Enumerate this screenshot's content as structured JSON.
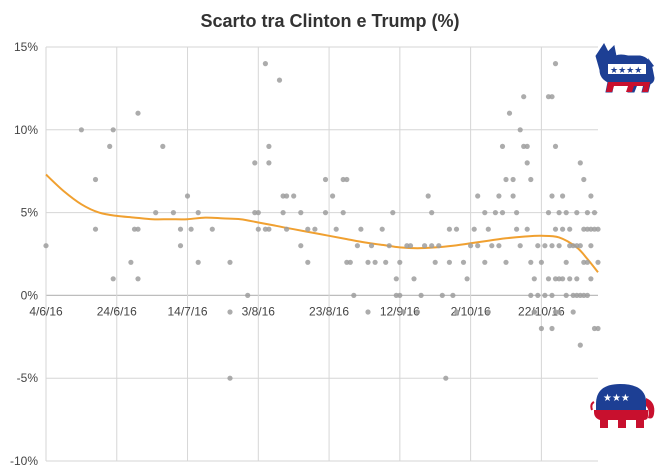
{
  "chart_data": {
    "type": "scatter",
    "title": "Scarto tra Clinton e Trump (%)",
    "xlabel": "",
    "ylabel": "",
    "x_ticks": [
      "4/6/16",
      "24/6/16",
      "14/7/16",
      "3/8/16",
      "23/8/16",
      "12/9/16",
      "2/10/16",
      "22/10/16"
    ],
    "y_ticks": [
      "15%",
      "10%",
      "5%",
      "0%",
      "-5%",
      "-10%"
    ],
    "ylim": [
      -10,
      15
    ],
    "xlim": [
      "2016-06-04",
      "2016-11-07"
    ],
    "grid": true,
    "legend": "none",
    "series": [
      {
        "kind": "points",
        "color": "#9e9e9e",
        "points": [
          [
            "2016-06-04",
            3
          ],
          [
            "2016-06-14",
            10
          ],
          [
            "2016-06-18",
            7
          ],
          [
            "2016-06-18",
            4
          ],
          [
            "2016-06-22",
            9
          ],
          [
            "2016-06-23",
            10
          ],
          [
            "2016-06-23",
            1
          ],
          [
            "2016-06-28",
            2
          ],
          [
            "2016-06-29",
            4
          ],
          [
            "2016-06-30",
            11
          ],
          [
            "2016-06-30",
            4
          ],
          [
            "2016-06-30",
            1
          ],
          [
            "2016-07-05",
            5
          ],
          [
            "2016-07-07",
            9
          ],
          [
            "2016-07-10",
            5
          ],
          [
            "2016-07-12",
            3
          ],
          [
            "2016-07-12",
            4
          ],
          [
            "2016-07-14",
            6
          ],
          [
            "2016-07-15",
            4
          ],
          [
            "2016-07-17",
            2
          ],
          [
            "2016-07-17",
            5
          ],
          [
            "2016-07-21",
            4
          ],
          [
            "2016-07-26",
            2
          ],
          [
            "2016-07-26",
            -1
          ],
          [
            "2016-07-26",
            -5
          ],
          [
            "2016-07-31",
            0
          ],
          [
            "2016-08-02",
            5
          ],
          [
            "2016-08-02",
            8
          ],
          [
            "2016-08-03",
            4
          ],
          [
            "2016-08-03",
            5
          ],
          [
            "2016-08-05",
            14
          ],
          [
            "2016-08-06",
            8
          ],
          [
            "2016-08-06",
            9
          ],
          [
            "2016-08-05",
            4
          ],
          [
            "2016-08-06",
            4
          ],
          [
            "2016-08-09",
            13
          ],
          [
            "2016-08-10",
            6
          ],
          [
            "2016-08-10",
            5
          ],
          [
            "2016-08-11",
            6
          ],
          [
            "2016-08-11",
            4
          ],
          [
            "2016-08-13",
            6
          ],
          [
            "2016-08-15",
            5
          ],
          [
            "2016-08-15",
            3
          ],
          [
            "2016-08-17",
            2
          ],
          [
            "2016-08-17",
            4
          ],
          [
            "2016-08-19",
            4
          ],
          [
            "2016-08-22",
            7
          ],
          [
            "2016-08-22",
            5
          ],
          [
            "2016-08-24",
            6
          ],
          [
            "2016-08-25",
            4
          ],
          [
            "2016-08-27",
            7
          ],
          [
            "2016-08-27",
            5
          ],
          [
            "2016-08-28",
            2
          ],
          [
            "2016-08-28",
            7
          ],
          [
            "2016-08-29",
            2
          ],
          [
            "2016-08-30",
            0
          ],
          [
            "2016-08-31",
            3
          ],
          [
            "2016-09-01",
            4
          ],
          [
            "2016-09-03",
            -1
          ],
          [
            "2016-09-03",
            2
          ],
          [
            "2016-09-04",
            3
          ],
          [
            "2016-09-05",
            2
          ],
          [
            "2016-09-07",
            4
          ],
          [
            "2016-09-08",
            2
          ],
          [
            "2016-09-09",
            3
          ],
          [
            "2016-09-10",
            5
          ],
          [
            "2016-09-11",
            1
          ],
          [
            "2016-09-11",
            0
          ],
          [
            "2016-09-12",
            2
          ],
          [
            "2016-09-12",
            0
          ],
          [
            "2016-09-13",
            -1
          ],
          [
            "2016-09-14",
            3
          ],
          [
            "2016-09-15",
            3
          ],
          [
            "2016-09-16",
            1
          ],
          [
            "2016-09-17",
            -1
          ],
          [
            "2016-09-18",
            0
          ],
          [
            "2016-09-19",
            3
          ],
          [
            "2016-09-20",
            6
          ],
          [
            "2016-09-21",
            5
          ],
          [
            "2016-09-21",
            3
          ],
          [
            "2016-09-22",
            2
          ],
          [
            "2016-09-23",
            3
          ],
          [
            "2016-09-24",
            0
          ],
          [
            "2016-09-25",
            -5
          ],
          [
            "2016-09-26",
            4
          ],
          [
            "2016-09-26",
            2
          ],
          [
            "2016-09-27",
            0
          ],
          [
            "2016-09-28",
            4
          ],
          [
            "2016-09-28",
            -1
          ],
          [
            "2016-09-30",
            2
          ],
          [
            "2016-10-01",
            1
          ],
          [
            "2016-10-02",
            3
          ],
          [
            "2016-10-03",
            4
          ],
          [
            "2016-10-04",
            6
          ],
          [
            "2016-10-04",
            3
          ],
          [
            "2016-10-06",
            5
          ],
          [
            "2016-10-06",
            2
          ],
          [
            "2016-10-07",
            4
          ],
          [
            "2016-10-07",
            -1
          ],
          [
            "2016-10-08",
            3
          ],
          [
            "2016-10-09",
            5
          ],
          [
            "2016-10-10",
            6
          ],
          [
            "2016-10-10",
            3
          ],
          [
            "2016-10-11",
            9
          ],
          [
            "2016-10-11",
            5
          ],
          [
            "2016-10-12",
            7
          ],
          [
            "2016-10-12",
            2
          ],
          [
            "2016-10-13",
            11
          ],
          [
            "2016-10-14",
            7
          ],
          [
            "2016-10-14",
            6
          ],
          [
            "2016-10-15",
            5
          ],
          [
            "2016-10-15",
            4
          ],
          [
            "2016-10-16",
            10
          ],
          [
            "2016-10-16",
            3
          ],
          [
            "2016-10-17",
            12
          ],
          [
            "2016-10-17",
            9
          ],
          [
            "2016-10-18",
            9
          ],
          [
            "2016-10-18",
            8
          ],
          [
            "2016-10-18",
            4
          ],
          [
            "2016-10-19",
            7
          ],
          [
            "2016-10-19",
            2
          ],
          [
            "2016-10-19",
            0
          ],
          [
            "2016-10-20",
            1
          ],
          [
            "2016-10-20",
            -1
          ],
          [
            "2016-10-20",
            -1
          ],
          [
            "2016-10-21",
            3
          ],
          [
            "2016-10-21",
            0
          ],
          [
            "2016-10-22",
            2
          ],
          [
            "2016-10-22",
            -2
          ],
          [
            "2016-10-23",
            3
          ],
          [
            "2016-10-23",
            0
          ],
          [
            "2016-10-24",
            12
          ],
          [
            "2016-10-24",
            5
          ],
          [
            "2016-10-24",
            1
          ],
          [
            "2016-10-25",
            12
          ],
          [
            "2016-10-25",
            6
          ],
          [
            "2016-10-25",
            3
          ],
          [
            "2016-10-25",
            0
          ],
          [
            "2016-10-25",
            -2
          ],
          [
            "2016-10-26",
            14
          ],
          [
            "2016-10-26",
            9
          ],
          [
            "2016-10-26",
            4
          ],
          [
            "2016-10-26",
            1
          ],
          [
            "2016-10-26",
            -1
          ],
          [
            "2016-10-27",
            5
          ],
          [
            "2016-10-27",
            3
          ],
          [
            "2016-10-27",
            1
          ],
          [
            "2016-10-27",
            -1
          ],
          [
            "2016-10-28",
            6
          ],
          [
            "2016-10-28",
            4
          ],
          [
            "2016-10-28",
            1
          ],
          [
            "2016-10-29",
            5
          ],
          [
            "2016-10-29",
            2
          ],
          [
            "2016-10-29",
            0
          ],
          [
            "2016-10-30",
            4
          ],
          [
            "2016-10-30",
            3
          ],
          [
            "2016-10-30",
            1
          ],
          [
            "2016-10-31",
            3
          ],
          [
            "2016-10-31",
            0
          ],
          [
            "2016-10-31",
            -1
          ],
          [
            "2016-11-01",
            5
          ],
          [
            "2016-11-01",
            3
          ],
          [
            "2016-11-01",
            1
          ],
          [
            "2016-11-01",
            0
          ],
          [
            "2016-11-02",
            8
          ],
          [
            "2016-11-02",
            3
          ],
          [
            "2016-11-02",
            0
          ],
          [
            "2016-11-02",
            -3
          ],
          [
            "2016-11-03",
            7
          ],
          [
            "2016-11-03",
            4
          ],
          [
            "2016-11-03",
            2
          ],
          [
            "2016-11-03",
            0
          ],
          [
            "2016-11-04",
            5
          ],
          [
            "2016-11-04",
            4
          ],
          [
            "2016-11-04",
            2
          ],
          [
            "2016-11-04",
            0
          ],
          [
            "2016-11-05",
            6
          ],
          [
            "2016-11-05",
            4
          ],
          [
            "2016-11-05",
            3
          ],
          [
            "2016-11-05",
            1
          ],
          [
            "2016-11-06",
            5
          ],
          [
            "2016-11-06",
            4
          ],
          [
            "2016-11-06",
            -2
          ],
          [
            "2016-11-07",
            4
          ],
          [
            "2016-11-07",
            2
          ],
          [
            "2016-11-07",
            -2
          ]
        ]
      },
      {
        "kind": "trend",
        "color": "#f0a030",
        "points": [
          [
            "2016-06-04",
            7.3
          ],
          [
            "2016-06-09",
            6.3
          ],
          [
            "2016-06-14",
            5.5
          ],
          [
            "2016-06-19",
            5.0
          ],
          [
            "2016-06-24",
            4.8
          ],
          [
            "2016-06-29",
            4.7
          ],
          [
            "2016-07-04",
            4.6
          ],
          [
            "2016-07-09",
            4.6
          ],
          [
            "2016-07-14",
            4.6
          ],
          [
            "2016-07-19",
            4.7
          ],
          [
            "2016-07-24",
            4.65
          ],
          [
            "2016-07-29",
            4.6
          ],
          [
            "2016-08-03",
            4.4
          ],
          [
            "2016-08-08",
            4.2
          ],
          [
            "2016-08-13",
            4.0
          ],
          [
            "2016-08-18",
            3.8
          ],
          [
            "2016-08-23",
            3.6
          ],
          [
            "2016-08-28",
            3.4
          ],
          [
            "2016-09-02",
            3.2
          ],
          [
            "2016-09-07",
            3.05
          ],
          [
            "2016-09-12",
            2.9
          ],
          [
            "2016-09-17",
            2.85
          ],
          [
            "2016-09-22",
            2.9
          ],
          [
            "2016-09-27",
            3.0
          ],
          [
            "2016-10-02",
            3.15
          ],
          [
            "2016-10-07",
            3.3
          ],
          [
            "2016-10-12",
            3.45
          ],
          [
            "2016-10-17",
            3.55
          ],
          [
            "2016-10-22",
            3.6
          ],
          [
            "2016-10-27",
            3.5
          ],
          [
            "2016-11-01",
            2.9
          ],
          [
            "2016-11-04",
            2.2
          ],
          [
            "2016-11-07",
            1.4
          ]
        ]
      }
    ]
  },
  "icons": {
    "top_right": "democrat-donkey-icon",
    "bottom_right": "republican-elephant-icon"
  }
}
